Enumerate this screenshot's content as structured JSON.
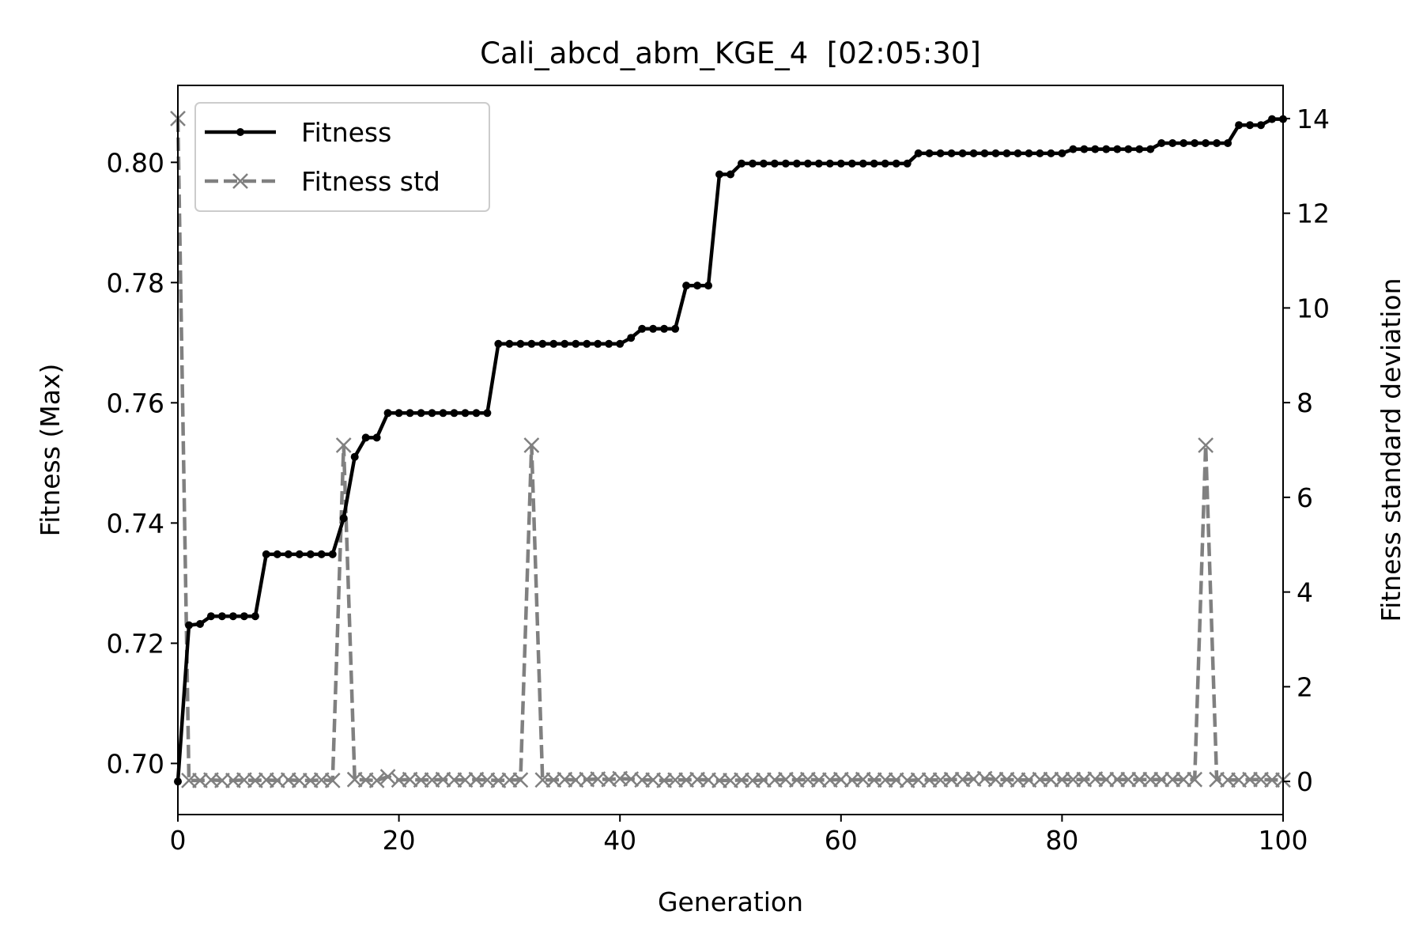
{
  "chart_data": {
    "type": "line",
    "title": "Cali_abcd_abm_KGE_4  [02:05:30]",
    "xlabel": "Generation",
    "ylabel": "Fitness (Max)",
    "y2label": "Fitness standard deviation",
    "xlim": [
      0,
      100
    ],
    "ylim": [
      0.6915,
      0.8128
    ],
    "y2lim": [
      -0.7,
      14.7
    ],
    "xticks": [
      0,
      20,
      40,
      60,
      80,
      100
    ],
    "xtick_labels": [
      "0",
      "20",
      "40",
      "60",
      "80",
      "100"
    ],
    "yticks": [
      0.7,
      0.72,
      0.74,
      0.76,
      0.78,
      0.8
    ],
    "ytick_labels": [
      "0.70",
      "0.72",
      "0.74",
      "0.76",
      "0.78",
      "0.80"
    ],
    "y2ticks": [
      0,
      2,
      4,
      6,
      8,
      10,
      12,
      14
    ],
    "y2tick_labels": [
      "0",
      "2",
      "4",
      "6",
      "8",
      "10",
      "12",
      "14"
    ],
    "legend_position": "upper-left",
    "grid": false,
    "x": [
      0,
      1,
      2,
      3,
      4,
      5,
      6,
      7,
      8,
      9,
      10,
      11,
      12,
      13,
      14,
      15,
      16,
      17,
      18,
      19,
      20,
      21,
      22,
      23,
      24,
      25,
      26,
      27,
      28,
      29,
      30,
      31,
      32,
      33,
      34,
      35,
      36,
      37,
      38,
      39,
      40,
      41,
      42,
      43,
      44,
      45,
      46,
      47,
      48,
      49,
      50,
      51,
      52,
      53,
      54,
      55,
      56,
      57,
      58,
      59,
      60,
      61,
      62,
      63,
      64,
      65,
      66,
      67,
      68,
      69,
      70,
      71,
      72,
      73,
      74,
      75,
      76,
      77,
      78,
      79,
      80,
      81,
      82,
      83,
      84,
      85,
      86,
      87,
      88,
      89,
      90,
      91,
      92,
      93,
      94,
      95,
      96,
      97,
      98,
      99,
      100
    ],
    "series": [
      {
        "name": "Fitness",
        "axis": "left",
        "color": "#000000",
        "style": "solid",
        "marker": "dot",
        "values": [
          0.697,
          0.723,
          0.7232,
          0.7245,
          0.7245,
          0.7245,
          0.7245,
          0.7245,
          0.7348,
          0.7348,
          0.7348,
          0.7348,
          0.7348,
          0.7348,
          0.7348,
          0.7408,
          0.751,
          0.7542,
          0.7542,
          0.7583,
          0.7583,
          0.7583,
          0.7583,
          0.7583,
          0.7583,
          0.7583,
          0.7583,
          0.7583,
          0.7583,
          0.7698,
          0.7698,
          0.7698,
          0.7698,
          0.7698,
          0.7698,
          0.7698,
          0.7698,
          0.7698,
          0.7698,
          0.7698,
          0.7698,
          0.7708,
          0.7723,
          0.7723,
          0.7723,
          0.7723,
          0.7795,
          0.7795,
          0.7795,
          0.798,
          0.798,
          0.7998,
          0.7998,
          0.7998,
          0.7998,
          0.7998,
          0.7998,
          0.7998,
          0.7998,
          0.7998,
          0.7998,
          0.7998,
          0.7998,
          0.7998,
          0.7998,
          0.7998,
          0.7998,
          0.8015,
          0.8015,
          0.8015,
          0.8015,
          0.8015,
          0.8015,
          0.8015,
          0.8015,
          0.8015,
          0.8015,
          0.8015,
          0.8015,
          0.8015,
          0.8015,
          0.8022,
          0.8022,
          0.8022,
          0.8022,
          0.8022,
          0.8022,
          0.8022,
          0.8022,
          0.8032,
          0.8032,
          0.8032,
          0.8032,
          0.8032,
          0.8032,
          0.8032,
          0.8062,
          0.8062,
          0.8062,
          0.8072,
          0.8072
        ]
      },
      {
        "name": "Fitness std",
        "axis": "right",
        "color": "#808080",
        "style": "dashed",
        "marker": "x",
        "values": [
          14.0,
          0.02,
          0.02,
          0.03,
          0.02,
          0.02,
          0.03,
          0.02,
          0.03,
          0.02,
          0.03,
          0.02,
          0.02,
          0.03,
          0.02,
          7.1,
          0.04,
          0.03,
          0.02,
          0.1,
          0.03,
          0.04,
          0.03,
          0.03,
          0.04,
          0.03,
          0.03,
          0.04,
          0.03,
          0.02,
          0.03,
          0.03,
          7.1,
          0.03,
          0.03,
          0.04,
          0.03,
          0.04,
          0.05,
          0.04,
          0.06,
          0.05,
          0.03,
          0.03,
          0.02,
          0.03,
          0.03,
          0.04,
          0.03,
          0.02,
          0.02,
          0.03,
          0.02,
          0.03,
          0.03,
          0.04,
          0.03,
          0.04,
          0.03,
          0.03,
          0.04,
          0.03,
          0.04,
          0.03,
          0.03,
          0.03,
          0.02,
          0.03,
          0.03,
          0.03,
          0.04,
          0.04,
          0.05,
          0.06,
          0.04,
          0.04,
          0.03,
          0.03,
          0.04,
          0.04,
          0.04,
          0.04,
          0.04,
          0.05,
          0.04,
          0.04,
          0.04,
          0.04,
          0.04,
          0.04,
          0.04,
          0.04,
          0.04,
          7.1,
          0.04,
          0.03,
          0.03,
          0.04,
          0.04,
          0.03,
          0.03
        ]
      }
    ]
  }
}
